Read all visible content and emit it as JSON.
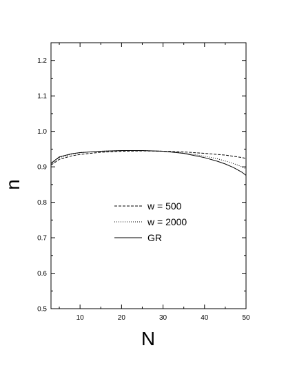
{
  "chart_data": {
    "type": "line",
    "title": "",
    "xlabel": "N",
    "ylabel": "n",
    "xlim": [
      3,
      50
    ],
    "ylim": [
      0.5,
      1.25
    ],
    "x_major_ticks": [
      10,
      20,
      30,
      40,
      50
    ],
    "y_major_ticks": [
      0.5,
      0.6,
      0.7,
      0.8,
      0.9,
      1.0,
      1.1,
      1.2
    ],
    "x_tick_labels": [
      "10",
      "20",
      "30",
      "40",
      "50"
    ],
    "y_tick_labels": [
      "0.5",
      "0.6",
      "0.7",
      "0.8",
      "0.9",
      "1.0",
      "1.1",
      "1.2"
    ],
    "grid": false,
    "legend_position": "center",
    "series": [
      {
        "name": "w = 500",
        "style": "dashed",
        "x": [
          3,
          5,
          8,
          10,
          15,
          20,
          25,
          30,
          35,
          40,
          45,
          48,
          50
        ],
        "y": [
          0.905,
          0.921,
          0.931,
          0.935,
          0.941,
          0.944,
          0.945,
          0.944,
          0.942,
          0.938,
          0.933,
          0.928,
          0.924
        ]
      },
      {
        "name": "w = 2000",
        "style": "dotted",
        "x": [
          3,
          5,
          8,
          10,
          15,
          20,
          25,
          30,
          35,
          40,
          43,
          46,
          48,
          50
        ],
        "y": [
          0.908,
          0.926,
          0.936,
          0.94,
          0.944,
          0.946,
          0.946,
          0.944,
          0.939,
          0.93,
          0.923,
          0.913,
          0.905,
          0.895
        ]
      },
      {
        "name": "GR",
        "style": "solid",
        "x": [
          3,
          5,
          8,
          10,
          15,
          20,
          25,
          30,
          35,
          40,
          43,
          45,
          47,
          49,
          50
        ],
        "y": [
          0.91,
          0.928,
          0.937,
          0.94,
          0.944,
          0.946,
          0.946,
          0.944,
          0.938,
          0.926,
          0.916,
          0.908,
          0.898,
          0.885,
          0.876
        ]
      }
    ]
  }
}
